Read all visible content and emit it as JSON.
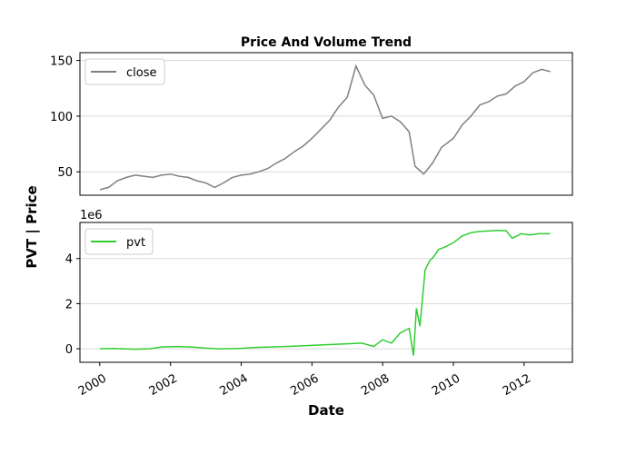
{
  "chart_data": [
    {
      "type": "line",
      "title": "Price And Volume Trend",
      "xlim": [
        "2000-01-03",
        "2012-10-01"
      ],
      "ylim": [
        29,
        157
      ],
      "yticks": [
        50,
        100,
        150
      ],
      "grid": "y",
      "legend": "top-left",
      "series": [
        {
          "name": "close",
          "color": "#808080",
          "x": [
            "2000-01-03",
            "2000-04-01",
            "2000-07-01",
            "2000-10-01",
            "2001-01-01",
            "2001-04-01",
            "2001-07-01",
            "2001-10-01",
            "2002-01-01",
            "2002-04-01",
            "2002-07-01",
            "2002-10-01",
            "2003-01-01",
            "2003-04-01",
            "2003-07-01",
            "2003-10-01",
            "2004-01-01",
            "2004-04-01",
            "2004-07-01",
            "2004-10-01",
            "2005-01-01",
            "2005-04-01",
            "2005-07-01",
            "2005-10-01",
            "2006-01-01",
            "2006-04-01",
            "2006-07-01",
            "2006-10-01",
            "2007-01-01",
            "2007-04-01",
            "2007-07-01",
            "2007-10-01",
            "2008-01-01",
            "2008-04-01",
            "2008-07-01",
            "2008-10-01",
            "2008-12-01",
            "2009-03-01",
            "2009-06-01",
            "2009-09-01",
            "2010-01-01",
            "2010-04-01",
            "2010-07-01",
            "2010-10-01",
            "2011-01-01",
            "2011-04-01",
            "2011-07-01",
            "2011-10-01",
            "2012-01-01",
            "2012-04-01",
            "2012-07-01",
            "2012-09-28"
          ],
          "y": [
            34,
            36,
            42,
            45,
            47,
            46,
            45,
            47,
            48,
            46,
            45,
            42,
            40,
            36,
            40,
            45,
            47,
            48,
            50,
            53,
            58,
            62,
            68,
            73,
            80,
            88,
            96,
            108,
            117,
            145,
            128,
            119,
            98,
            100,
            95,
            86,
            55,
            48,
            58,
            72,
            80,
            92,
            100,
            110,
            113,
            118,
            120,
            127,
            131,
            139,
            142,
            140
          ]
        }
      ]
    },
    {
      "type": "line",
      "ylim": [
        -600000,
        5600000
      ],
      "yticks": [
        0,
        2,
        4
      ],
      "offset_text": "1e6",
      "xlabel": "Date",
      "ylabel": "PVT | Price",
      "xticks": [
        "2000",
        "2002",
        "2004",
        "2006",
        "2008",
        "2010",
        "2012"
      ],
      "grid": "y",
      "legend": "top-left",
      "series": [
        {
          "name": "pvt",
          "color": "#32cd32",
          "x": [
            "2000-01-03",
            "2000-06-01",
            "2001-01-01",
            "2001-06-01",
            "2001-10-01",
            "2002-03-01",
            "2002-08-01",
            "2003-01-01",
            "2003-06-01",
            "2004-01-01",
            "2004-06-01",
            "2005-01-01",
            "2005-06-01",
            "2006-01-01",
            "2006-06-01",
            "2007-01-01",
            "2007-06-01",
            "2007-10-01",
            "2008-01-01",
            "2008-04-01",
            "2008-07-01",
            "2008-10-01",
            "2008-11-15",
            "2008-12-15",
            "2009-01-20",
            "2009-03-15",
            "2009-05-01",
            "2009-06-15",
            "2009-08-01",
            "2009-10-01",
            "2010-01-01",
            "2010-04-01",
            "2010-07-01",
            "2010-10-01",
            "2011-01-01",
            "2011-04-01",
            "2011-07-01",
            "2011-09-01",
            "2011-12-01",
            "2012-03-01",
            "2012-06-01",
            "2012-09-28"
          ],
          "y": [
            0,
            10000,
            -20000,
            0,
            80000,
            100000,
            80000,
            30000,
            -10000,
            20000,
            60000,
            90000,
            110000,
            150000,
            180000,
            220000,
            250000,
            100000,
            400000,
            250000,
            700000,
            900000,
            -300000,
            1800000,
            1000000,
            3500000,
            3900000,
            4100000,
            4400000,
            4500000,
            4700000,
            5000000,
            5150000,
            5200000,
            5220000,
            5250000,
            5230000,
            4900000,
            5100000,
            5050000,
            5100000,
            5100000
          ]
        }
      ]
    }
  ]
}
